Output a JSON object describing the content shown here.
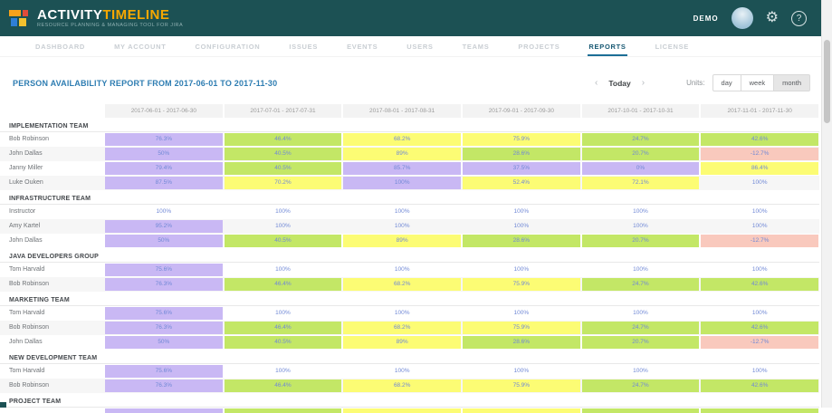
{
  "header": {
    "brand_activity": "ACTIVITY",
    "brand_timeline": "TIMELINE",
    "tagline": "RESOURCE PLANNING & MANAGING TOOL FOR JIRA",
    "user_label": "DEMO",
    "help_glyph": "?",
    "gear_glyph": "⚙",
    "colors": {
      "topbar": "#1c5154",
      "brand_orange": "#f7a800"
    }
  },
  "nav": {
    "items": [
      {
        "label": "DASHBOARD",
        "active": false
      },
      {
        "label": "MY ACCOUNT",
        "active": false
      },
      {
        "label": "CONFIGURATION",
        "active": false
      },
      {
        "label": "ISSUES",
        "active": false
      },
      {
        "label": "EVENTS",
        "active": false
      },
      {
        "label": "USERS",
        "active": false
      },
      {
        "label": "TEAMS",
        "active": false
      },
      {
        "label": "PROJECTS",
        "active": false
      },
      {
        "label": "REPORTS",
        "active": true
      },
      {
        "label": "LICENSE",
        "active": false
      }
    ]
  },
  "report": {
    "title": "PERSON AVAILABILITY REPORT FROM 2017-06-01 TO 2017-11-30",
    "prev_glyph": "‹",
    "next_glyph": "›",
    "today_label": "Today",
    "units_label": "Units:",
    "units": [
      {
        "label": "day",
        "selected": false
      },
      {
        "label": "week",
        "selected": false
      },
      {
        "label": "month",
        "selected": true
      }
    ]
  },
  "table": {
    "columns": [
      "2017-06-01 - 2017-06-30",
      "2017-07-01 - 2017-07-31",
      "2017-08-01 - 2017-08-31",
      "2017-09-01 - 2017-09-30",
      "2017-10-01 - 2017-10-31",
      "2017-11-01 - 2017-11-30"
    ],
    "cell_colors": {
      "purple": "#c9b8f4",
      "green": "#c3e766",
      "yellow": "#fcfc74",
      "pink": "#f9c9bd"
    },
    "sections": [
      {
        "name": "IMPLEMENTATION TEAM",
        "rows": [
          {
            "person": "Bob Robinson",
            "cells": [
              {
                "v": "76.3%",
                "c": "purple"
              },
              {
                "v": "46.4%",
                "c": "green"
              },
              {
                "v": "68.2%",
                "c": "yellow"
              },
              {
                "v": "75.9%",
                "c": "yellow"
              },
              {
                "v": "24.7%",
                "c": "green"
              },
              {
                "v": "42.6%",
                "c": "green"
              }
            ]
          },
          {
            "person": "John Dallas",
            "cells": [
              {
                "v": "50%",
                "c": "purple"
              },
              {
                "v": "40.5%",
                "c": "green"
              },
              {
                "v": "89%",
                "c": "yellow"
              },
              {
                "v": "28.6%",
                "c": "green"
              },
              {
                "v": "20.7%",
                "c": "green"
              },
              {
                "v": "-12.7%",
                "c": "pink"
              }
            ]
          },
          {
            "person": "Janny Miller",
            "cells": [
              {
                "v": "79.4%",
                "c": "purple"
              },
              {
                "v": "40.5%",
                "c": "green"
              },
              {
                "v": "85.7%",
                "c": "purple"
              },
              {
                "v": "37.5%",
                "c": "purple"
              },
              {
                "v": "0%",
                "c": "purple"
              },
              {
                "v": "86.4%",
                "c": "yellow"
              }
            ]
          },
          {
            "person": "Luke Ouken",
            "cells": [
              {
                "v": "87.5%",
                "c": "purple"
              },
              {
                "v": "70.2%",
                "c": "yellow"
              },
              {
                "v": "100%",
                "c": "purple"
              },
              {
                "v": "52.4%",
                "c": "yellow"
              },
              {
                "v": "72.1%",
                "c": "yellow"
              },
              {
                "v": "100%",
                "c": "none"
              }
            ]
          }
        ]
      },
      {
        "name": "INFRASTRUCTURE TEAM",
        "rows": [
          {
            "person": "Instructor",
            "cells": [
              {
                "v": "100%",
                "c": "none"
              },
              {
                "v": "100%",
                "c": "none"
              },
              {
                "v": "100%",
                "c": "none"
              },
              {
                "v": "100%",
                "c": "none"
              },
              {
                "v": "100%",
                "c": "none"
              },
              {
                "v": "100%",
                "c": "none"
              }
            ]
          },
          {
            "person": "Amy Kartel",
            "cells": [
              {
                "v": "95.2%",
                "c": "purple"
              },
              {
                "v": "100%",
                "c": "none"
              },
              {
                "v": "100%",
                "c": "none"
              },
              {
                "v": "100%",
                "c": "none"
              },
              {
                "v": "100%",
                "c": "none"
              },
              {
                "v": "100%",
                "c": "none"
              }
            ]
          },
          {
            "person": "John Dallas",
            "cells": [
              {
                "v": "50%",
                "c": "purple"
              },
              {
                "v": "40.5%",
                "c": "green"
              },
              {
                "v": "89%",
                "c": "yellow"
              },
              {
                "v": "28.6%",
                "c": "green"
              },
              {
                "v": "20.7%",
                "c": "green"
              },
              {
                "v": "-12.7%",
                "c": "pink"
              }
            ]
          }
        ]
      },
      {
        "name": "JAVA DEVELOPERS GROUP",
        "rows": [
          {
            "person": "Tom Harvald",
            "cells": [
              {
                "v": "75.6%",
                "c": "purple"
              },
              {
                "v": "100%",
                "c": "none"
              },
              {
                "v": "100%",
                "c": "none"
              },
              {
                "v": "100%",
                "c": "none"
              },
              {
                "v": "100%",
                "c": "none"
              },
              {
                "v": "100%",
                "c": "none"
              }
            ]
          },
          {
            "person": "Bob Robinson",
            "cells": [
              {
                "v": "76.3%",
                "c": "purple"
              },
              {
                "v": "46.4%",
                "c": "green"
              },
              {
                "v": "68.2%",
                "c": "yellow"
              },
              {
                "v": "75.9%",
                "c": "yellow"
              },
              {
                "v": "24.7%",
                "c": "green"
              },
              {
                "v": "42.6%",
                "c": "green"
              }
            ]
          }
        ]
      },
      {
        "name": "MARKETING TEAM",
        "rows": [
          {
            "person": "Tom Harvald",
            "cells": [
              {
                "v": "75.6%",
                "c": "purple"
              },
              {
                "v": "100%",
                "c": "none"
              },
              {
                "v": "100%",
                "c": "none"
              },
              {
                "v": "100%",
                "c": "none"
              },
              {
                "v": "100%",
                "c": "none"
              },
              {
                "v": "100%",
                "c": "none"
              }
            ]
          },
          {
            "person": "Bob Robinson",
            "cells": [
              {
                "v": "76.3%",
                "c": "purple"
              },
              {
                "v": "46.4%",
                "c": "green"
              },
              {
                "v": "68.2%",
                "c": "yellow"
              },
              {
                "v": "75.9%",
                "c": "yellow"
              },
              {
                "v": "24.7%",
                "c": "green"
              },
              {
                "v": "42.6%",
                "c": "green"
              }
            ]
          },
          {
            "person": "John Dallas",
            "cells": [
              {
                "v": "50%",
                "c": "purple"
              },
              {
                "v": "40.5%",
                "c": "green"
              },
              {
                "v": "89%",
                "c": "yellow"
              },
              {
                "v": "28.6%",
                "c": "green"
              },
              {
                "v": "20.7%",
                "c": "green"
              },
              {
                "v": "-12.7%",
                "c": "pink"
              }
            ]
          }
        ]
      },
      {
        "name": "NEW DEVELOPMENT TEAM",
        "rows": [
          {
            "person": "Tom Harvald",
            "cells": [
              {
                "v": "75.6%",
                "c": "purple"
              },
              {
                "v": "100%",
                "c": "none"
              },
              {
                "v": "100%",
                "c": "none"
              },
              {
                "v": "100%",
                "c": "none"
              },
              {
                "v": "100%",
                "c": "none"
              },
              {
                "v": "100%",
                "c": "none"
              }
            ]
          },
          {
            "person": "Bob Robinson",
            "cells": [
              {
                "v": "76.3%",
                "c": "purple"
              },
              {
                "v": "46.4%",
                "c": "green"
              },
              {
                "v": "68.2%",
                "c": "yellow"
              },
              {
                "v": "75.9%",
                "c": "yellow"
              },
              {
                "v": "24.7%",
                "c": "green"
              },
              {
                "v": "42.6%",
                "c": "green"
              }
            ]
          }
        ]
      },
      {
        "name": "PROJECT TEAM",
        "rows": [],
        "partial_row_colors": [
          "purple",
          "green",
          "yellow",
          "yellow",
          "green",
          "green"
        ]
      }
    ]
  }
}
